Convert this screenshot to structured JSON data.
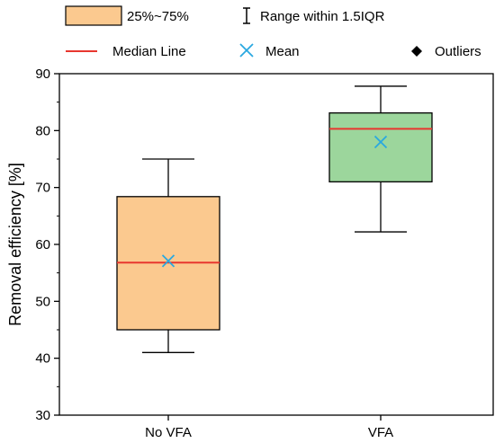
{
  "chart_data": {
    "type": "box",
    "ylabel": "Removal efficiency [%]",
    "xlabel": "",
    "ylim": [
      30,
      90
    ],
    "yticks": [
      30,
      40,
      50,
      60,
      70,
      80,
      90
    ],
    "grid": false,
    "categories": [
      "No VFA",
      "VFA"
    ],
    "boxes": [
      {
        "category": "No VFA",
        "whisker_low": 41,
        "q1": 45,
        "median": 56.8,
        "mean": 57.1,
        "q3": 68.4,
        "whisker_high": 75,
        "fill": "#fbc98f"
      },
      {
        "category": "VFA",
        "whisker_low": 62.2,
        "q1": 71,
        "median": 80.3,
        "mean": 78,
        "q3": 83.1,
        "whisker_high": 87.8,
        "fill": "#9cd69c"
      }
    ],
    "legend": {
      "position": "top",
      "items": [
        {
          "key": "box",
          "label": "25%~75%"
        },
        {
          "key": "range",
          "label": "Range within 1.5IQR"
        },
        {
          "key": "median",
          "label": "Median Line"
        },
        {
          "key": "mean",
          "label": "Mean"
        },
        {
          "key": "outliers",
          "label": "Outliers"
        }
      ]
    },
    "colors": {
      "median": "#e8372f",
      "mean": "#29a8e0",
      "box_edge": "#000000",
      "legend_box": "#fbc98f"
    }
  }
}
